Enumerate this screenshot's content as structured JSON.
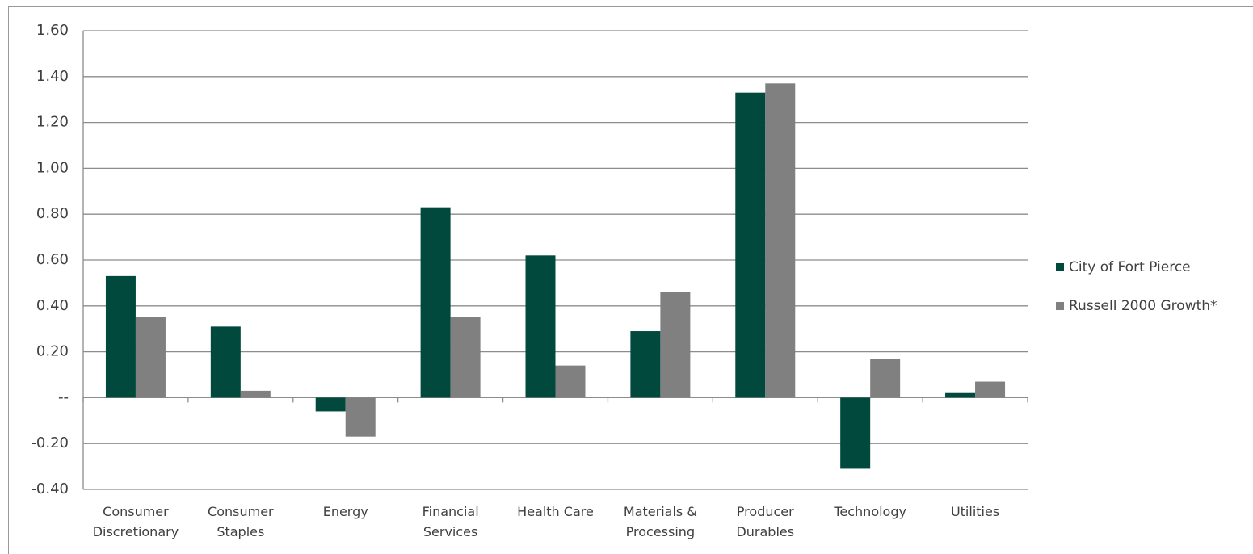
{
  "chart_data": {
    "type": "bar",
    "categories": [
      "Consumer\nDiscretionary",
      "Consumer\nStaples",
      "Energy",
      "Financial\nServices",
      "Health Care",
      "Materials &\nProcessing",
      "Producer\nDurables",
      "Technology",
      "Utilities"
    ],
    "series": [
      {
        "name": "City of Fort Pierce",
        "color": "#00493c",
        "values": [
          0.53,
          0.31,
          -0.06,
          0.83,
          0.62,
          0.29,
          1.33,
          -0.31,
          0.02
        ]
      },
      {
        "name": "Russell 2000 Growth*",
        "color": "#808080",
        "values": [
          0.35,
          0.03,
          -0.17,
          0.35,
          0.14,
          0.46,
          1.37,
          0.17,
          0.07
        ]
      }
    ],
    "ylim": [
      -0.4,
      1.6
    ],
    "yticks": [
      {
        "value": -0.4,
        "label": "-0.40"
      },
      {
        "value": -0.2,
        "label": "-0.20"
      },
      {
        "value": 0,
        "label": "--"
      },
      {
        "value": 0.2,
        "label": "0.20"
      },
      {
        "value": 0.4,
        "label": "0.40"
      },
      {
        "value": 0.6,
        "label": "0.60"
      },
      {
        "value": 0.8,
        "label": "0.80"
      },
      {
        "value": 1.0,
        "label": "1.00"
      },
      {
        "value": 1.2,
        "label": "1.20"
      },
      {
        "value": 1.4,
        "label": "1.40"
      },
      {
        "value": 1.6,
        "label": "1.60"
      }
    ],
    "grid": true,
    "legend": "right"
  }
}
